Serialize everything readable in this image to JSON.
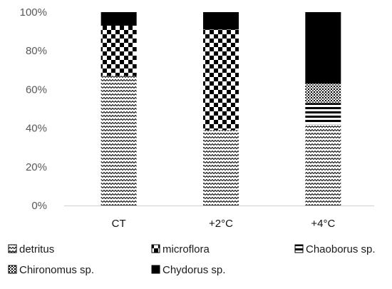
{
  "chart_data": {
    "type": "bar",
    "stacked": true,
    "normalized": true,
    "categories": [
      "CT",
      "+2°C",
      "+4°C"
    ],
    "series": [
      {
        "name": "detritus",
        "values": [
          67,
          39,
          42
        ],
        "pattern": "zigzag"
      },
      {
        "name": "microflora",
        "values": [
          26,
          52,
          0
        ],
        "pattern": "checker"
      },
      {
        "name": "Chaoborus sp.",
        "values": [
          0,
          0,
          11
        ],
        "pattern": "horizontal-stripes"
      },
      {
        "name": "Chironomus sp.",
        "values": [
          0,
          0,
          10
        ],
        "pattern": "dots"
      },
      {
        "name": "Chydorus sp.",
        "values": [
          7,
          9,
          37
        ],
        "pattern": "solid-black"
      }
    ],
    "yticks": [
      "0%",
      "20%",
      "40%",
      "60%",
      "80%",
      "100%"
    ],
    "ylim": [
      0,
      100
    ],
    "grid": false,
    "legend_position": "bottom"
  }
}
